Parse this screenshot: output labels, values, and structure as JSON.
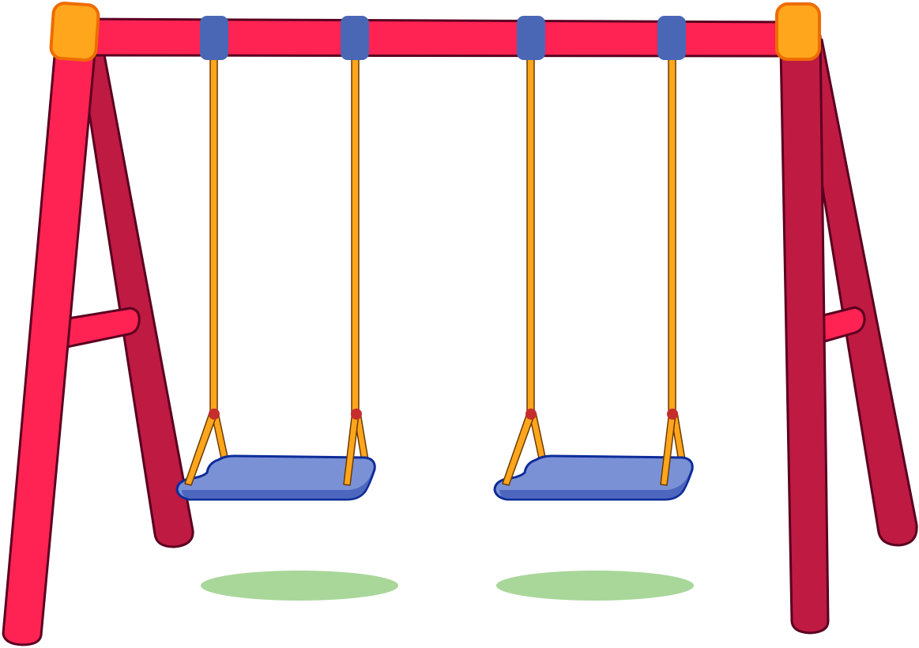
{
  "scene": {
    "subject": "swing-set",
    "swing_count": 2,
    "colors": {
      "frame_front": "#ff2353",
      "frame_back": "#bf1a42",
      "frame_outline": "#5a0020",
      "corner_cap": "#ffa61d",
      "corner_cap_outline": "#ef6c00",
      "hanger_clamp": "#4a67b6",
      "rope": "#ffa61d",
      "rope_outline": "#6b3a00",
      "rope_knot": "#c62d2d",
      "seat_top": "#7b91d6",
      "seat_side": "#4d67bf",
      "seat_outline": "#0d2c99",
      "ground_shadow": "#a9d79a"
    }
  }
}
